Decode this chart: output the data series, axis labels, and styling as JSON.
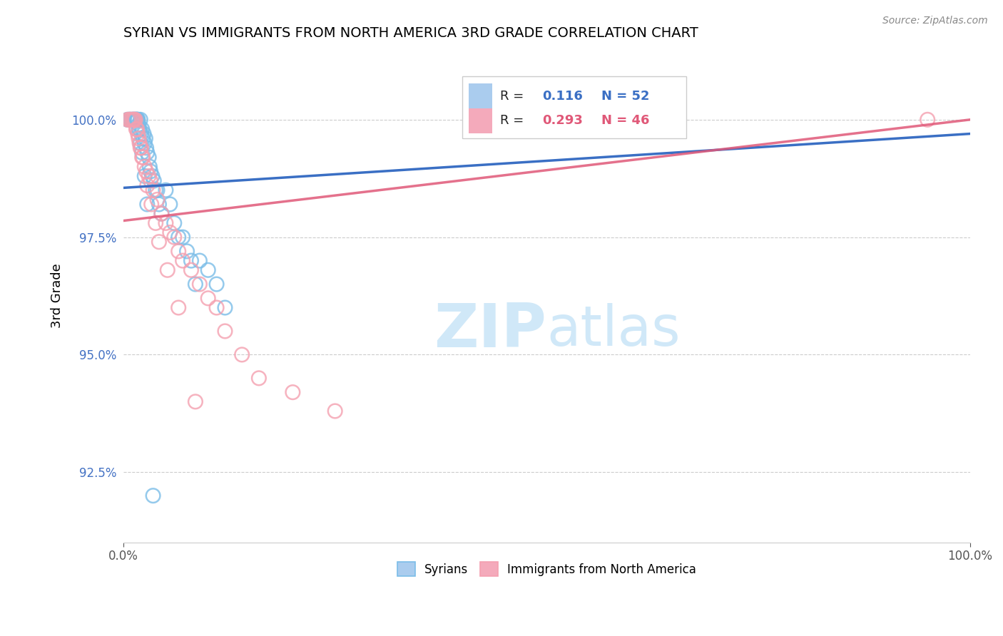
{
  "title": "SYRIAN VS IMMIGRANTS FROM NORTH AMERICA 3RD GRADE CORRELATION CHART",
  "source_text": "Source: ZipAtlas.com",
  "ylabel": "3rd Grade",
  "xlim": [
    0.0,
    100.0
  ],
  "ylim": [
    91.0,
    101.5
  ],
  "yticks": [
    92.5,
    95.0,
    97.5,
    100.0
  ],
  "ytick_labels": [
    "92.5%",
    "95.0%",
    "97.5%",
    "100.0%"
  ],
  "xtick_labels": [
    "0.0%",
    "100.0%"
  ],
  "xticks": [
    0.0,
    100.0
  ],
  "r_blue": 0.116,
  "n_blue": 52,
  "r_pink": 0.293,
  "n_pink": 46,
  "blue_color": "#7bbde8",
  "pink_color": "#f4a0b0",
  "blue_line_color": "#3a6fc4",
  "pink_line_color": "#e05878",
  "legend_box_color_blue": "#aaccee",
  "legend_box_color_pink": "#f4aabb",
  "watermark_color": "#d0e8f8",
  "syrians_x": [
    0.5,
    0.7,
    0.8,
    1.0,
    1.1,
    1.2,
    1.3,
    1.4,
    1.5,
    1.6,
    1.7,
    1.8,
    1.9,
    2.0,
    2.1,
    2.2,
    2.3,
    2.4,
    2.5,
    2.6,
    2.7,
    2.8,
    3.0,
    3.1,
    3.2,
    3.4,
    3.6,
    3.8,
    4.0,
    4.2,
    4.5,
    5.0,
    5.5,
    6.0,
    6.5,
    7.0,
    7.5,
    8.0,
    8.5,
    9.0,
    10.0,
    11.0,
    12.0,
    1.5,
    1.6,
    1.7,
    1.8,
    2.0,
    2.2,
    2.5,
    2.8,
    3.5
  ],
  "syrians_y": [
    100.0,
    100.0,
    100.0,
    100.0,
    100.0,
    100.0,
    100.0,
    100.0,
    100.0,
    100.0,
    100.0,
    99.9,
    99.8,
    100.0,
    99.7,
    99.8,
    99.6,
    99.7,
    99.5,
    99.6,
    99.4,
    99.3,
    99.2,
    99.0,
    98.9,
    98.8,
    98.7,
    98.5,
    98.5,
    98.2,
    98.0,
    98.5,
    98.2,
    97.8,
    97.5,
    97.5,
    97.2,
    97.0,
    96.5,
    97.0,
    96.8,
    96.5,
    96.0,
    100.0,
    100.0,
    100.0,
    99.8,
    99.5,
    99.3,
    98.8,
    98.2,
    92.0
  ],
  "northam_x": [
    0.5,
    0.7,
    0.8,
    1.0,
    1.1,
    1.3,
    1.5,
    1.7,
    1.9,
    2.1,
    2.3,
    2.5,
    2.7,
    3.0,
    3.2,
    3.5,
    4.0,
    4.5,
    5.0,
    5.5,
    6.0,
    6.5,
    7.0,
    8.0,
    9.0,
    10.0,
    11.0,
    12.0,
    14.0,
    16.0,
    20.0,
    25.0,
    95.0,
    1.2,
    1.4,
    1.6,
    1.8,
    2.0,
    2.2,
    2.8,
    3.3,
    3.8,
    4.2,
    5.2,
    6.5,
    8.5
  ],
  "northam_y": [
    100.0,
    100.0,
    100.0,
    100.0,
    100.0,
    100.0,
    99.8,
    99.7,
    99.5,
    99.4,
    99.2,
    99.0,
    98.9,
    98.8,
    98.7,
    98.5,
    98.3,
    98.0,
    97.8,
    97.6,
    97.5,
    97.2,
    97.0,
    96.8,
    96.5,
    96.2,
    96.0,
    95.5,
    95.0,
    94.5,
    94.2,
    93.8,
    100.0,
    100.0,
    100.0,
    99.8,
    99.6,
    99.4,
    99.2,
    98.6,
    98.2,
    97.8,
    97.4,
    96.8,
    96.0,
    94.0
  ],
  "blue_trendline_start_y": 98.55,
  "blue_trendline_end_y": 99.7,
  "pink_trendline_start_y": 97.85,
  "pink_trendline_end_y": 100.0
}
